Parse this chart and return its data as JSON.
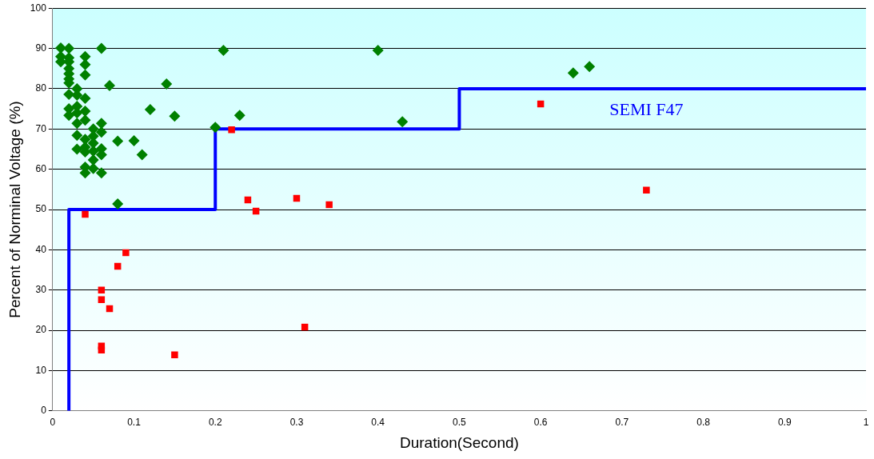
{
  "chart_data": {
    "type": "scatter",
    "xlabel": "Duration(Second)",
    "ylabel": "Percent of Norminal Voltage (%)",
    "xlim": [
      0,
      1
    ],
    "xticks": [
      0,
      0.1,
      0.2,
      0.3,
      0.4,
      0.5,
      0.6,
      0.7,
      0.8,
      0.9,
      1
    ],
    "ylim": [
      0,
      100
    ],
    "yticks": [
      0,
      10,
      20,
      30,
      40,
      50,
      60,
      70,
      80,
      90,
      100
    ],
    "grid": "y",
    "legend": false,
    "series": [
      {
        "type": "scatter",
        "color": "#008000",
        "marker": "diamond",
        "x": [
          0.01,
          0.02,
          0.06,
          0.01,
          0.02,
          0.04,
          0.01,
          0.04,
          0.02,
          0.02,
          0.02,
          0.02,
          0.04,
          0.02,
          0.07,
          0.14,
          0.03,
          0.02,
          0.03,
          0.04,
          0.02,
          0.03,
          0.04,
          0.02,
          0.03,
          0.12,
          0.15,
          0.04,
          0.03,
          0.06,
          0.05,
          0.06,
          0.03,
          0.05,
          0.04,
          0.08,
          0.1,
          0.05,
          0.03,
          0.04,
          0.06,
          0.04,
          0.05,
          0.06,
          0.11,
          0.05,
          0.04,
          0.05,
          0.04,
          0.06,
          0.08,
          0.21,
          0.4,
          0.23,
          0.2,
          0.43,
          0.64,
          0.66
        ],
        "values": [
          90.1,
          90,
          90,
          88,
          87.7,
          88,
          86.7,
          86,
          86.7,
          85,
          83.7,
          82.4,
          83.4,
          81.4,
          80.8,
          81.2,
          80,
          78.6,
          78.4,
          77.6,
          75,
          75.6,
          74.4,
          73.4,
          74,
          74.8,
          73.2,
          72.2,
          71.4,
          71.4,
          70,
          69.2,
          68.4,
          68.2,
          67.4,
          67,
          67.1,
          66.5,
          65,
          65.5,
          65.1,
          64.3,
          64.5,
          63.6,
          63.6,
          62.3,
          60.5,
          60.2,
          59.1,
          59.1,
          51.4,
          89.5,
          89.5,
          73.4,
          70.4,
          71.8,
          83.9,
          85.5
        ]
      },
      {
        "type": "scatter",
        "color": "#ff0000",
        "marker": "square",
        "x": [
          0.04,
          0.09,
          0.08,
          0.06,
          0.06,
          0.07,
          0.06,
          0.06,
          0.15,
          0.22,
          0.24,
          0.25,
          0.3,
          0.34,
          0.31,
          0.6,
          0.73
        ],
        "values": [
          48.8,
          39.3,
          35.9,
          30,
          27.6,
          25.4,
          16.1,
          15.1,
          13.9,
          69.8,
          52.4,
          49.6,
          52.8,
          51.2,
          20.8,
          76.2,
          54.8
        ]
      },
      {
        "type": "line",
        "name": "SEMI F47",
        "color": "#0000ff",
        "marker": "none",
        "x": [
          0.02,
          0.02,
          0.2,
          0.2,
          0.5,
          0.5,
          1
        ],
        "values": [
          0,
          50,
          50,
          70,
          70,
          80,
          80
        ]
      }
    ]
  }
}
